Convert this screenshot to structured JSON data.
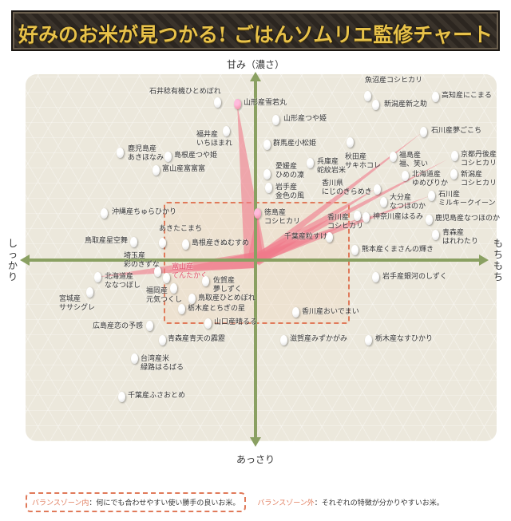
{
  "title": "好みのお米が見つかる! ごはんソムリエ監修チャート",
  "axes": {
    "top": "甘み（濃さ）",
    "bottom": "あっさり",
    "left": "しっかり",
    "right": "もちもち"
  },
  "colors": {
    "axis": "#8aa062",
    "ray": "#f07a8a",
    "zone": "#e07a5a",
    "title": "#e8c24a"
  },
  "legend": {
    "in_key": "バランスゾーン内",
    "in_text": "：何にでも合わせやすい使い勝手の良いお米。",
    "out_key": "バランスゾーン外",
    "out_text": "：それぞれの特徴が分かりやすいお米。"
  },
  "items": [
    "石井稔有機ひとめぼれ",
    "山形産雪若丸",
    "山形産つや姫",
    "福井産\nいちほまれ",
    "鹿児島産\nあきほなみ",
    "島根産つや姫",
    "富山産富富富",
    "魚沼産コシヒカリ",
    "新潟産新之助",
    "高知産にこまる",
    "石川産夢ごこち",
    "群馬産小松姫",
    "秋田産\nサキホコレ",
    "兵庫産\n蛇紋岩米",
    "愛媛産\nひめの凜",
    "岩手産\n金色の風",
    "香川県\nにじのきらめき",
    "福島産\n福、笑い",
    "京都丹後産\nコシヒカリ",
    "北海道産\nゆめぴりか",
    "新潟産\nコシヒカリ",
    "大分産\nなつほのか",
    "石川産\nミルキークイーン",
    "徳島産\nコシヒカリ",
    "香川産\nコシヒカリ",
    "神奈川産はるみ",
    "鹿児島産なつほのか",
    "千葉産粒すけ",
    "青森産\nはれわたり",
    "熊本産くまさんの輝き",
    "沖縄産ちゅらひかり",
    "あきたこまち",
    "鳥取産星空舞",
    "島根産きぬむすめ",
    "埼玉産\n彩のきずな",
    "富山産\nてんたかく",
    "北海道産\nななつぼし",
    "宮城産\nササシグレ",
    "福岡産\n元気つくし",
    "佐賀産\n夢しずく",
    "鳥取産ひとめぼれ",
    "栃木産とちぎの星",
    "山口産晴るる",
    "広島産恋の予感",
    "岩手産銀河のしずく",
    "香川産おいでまい",
    "青森産青天の霹靂",
    "滋賀産みずかがみ",
    "栃木産なすひかり",
    "台湾産米\n緑路はるばる",
    "千葉産ふさおとめ"
  ]
}
